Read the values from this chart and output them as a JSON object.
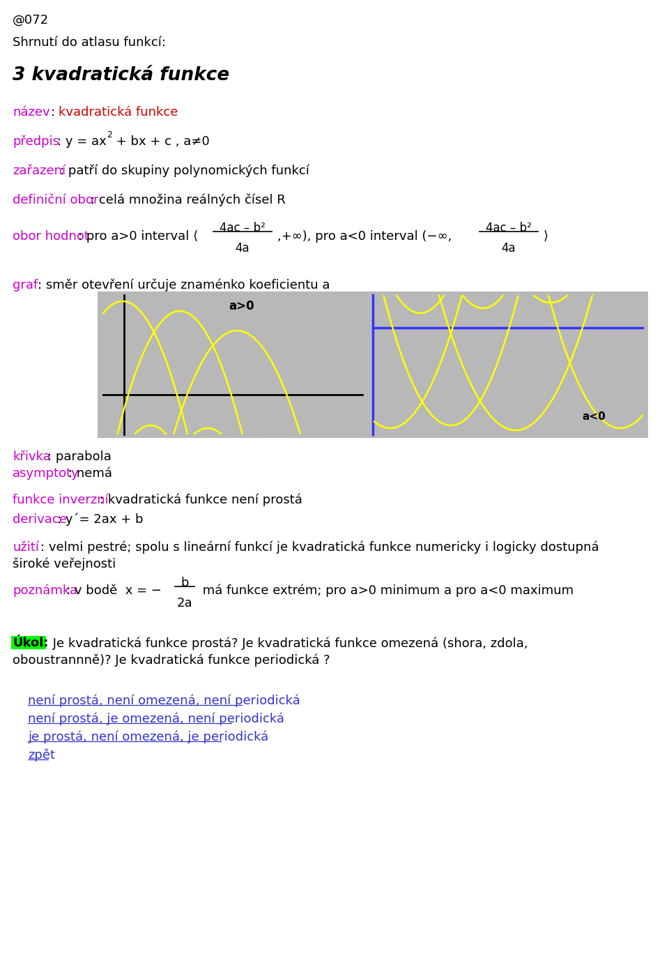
{
  "page_num": "@072",
  "header": "Shrnutí do atlasu funkcí:",
  "title": "3 kvadratická funkce",
  "bg_color": "#ffffff",
  "magenta": "#cc00cc",
  "red": "#cc0000",
  "black": "#000000",
  "blue_line": "#3333ff",
  "link_color": "#3333cc",
  "graph_bg": "#b8b8b8",
  "yellow": "#ffff00",
  "answers": [
    "není prostá, není omezená, není periodická",
    "není prostá, je omezená, není periodická",
    "je prostá, není omezená, je periodická",
    "zpět"
  ]
}
